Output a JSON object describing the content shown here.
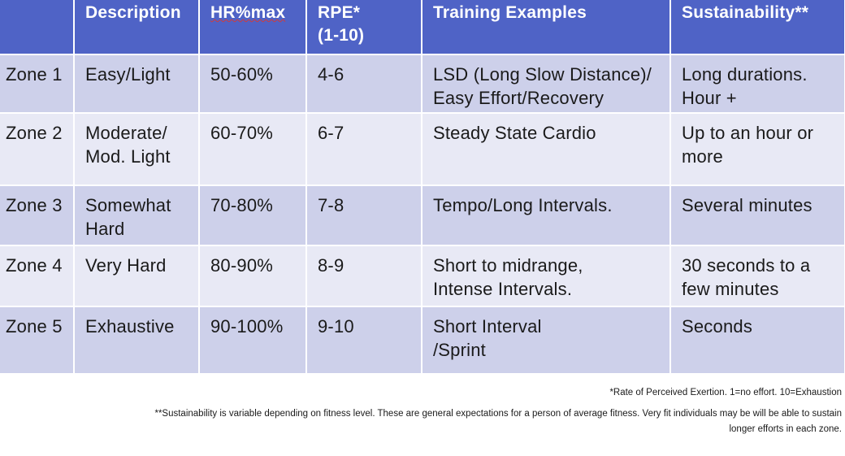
{
  "table": {
    "headers": [
      "",
      "Description",
      "HR%max",
      "RPE*\n(1-10)",
      "Training Examples",
      "Sustainability**"
    ],
    "rows": [
      {
        "zone": "Zone 1",
        "description": "Easy/Light",
        "hr": "50-60%",
        "rpe": "4-6",
        "examples": "LSD (Long Slow Distance)/\nEasy Effort/Recovery",
        "sustainability": "Long durations.\nHour +"
      },
      {
        "zone": "Zone 2",
        "description": "Moderate/\nMod. Light",
        "hr": "60-70%",
        "rpe": "6-7",
        "examples": "Steady State Cardio",
        "sustainability": "Up to an hour or\nmore"
      },
      {
        "zone": "Zone 3",
        "description": "Somewhat\nHard",
        "hr": "70-80%",
        "rpe": "7-8",
        "examples": "Tempo/Long Intervals.",
        "sustainability": "Several minutes"
      },
      {
        "zone": "Zone 4",
        "description": "Very Hard",
        "hr": "80-90%",
        "rpe": "8-9",
        "examples": "Short to midrange,\nIntense Intervals.",
        "sustainability": "30 seconds to a\nfew minutes"
      },
      {
        "zone": "Zone 5",
        "description": "Exhaustive",
        "hr": "90-100%",
        "rpe": "9-10",
        "examples": "Short Interval\n/Sprint",
        "sustainability": "Seconds"
      }
    ]
  },
  "footnotes": {
    "rpe": "*Rate of Perceived Exertion.  1=no effort. 10=Exhaustion",
    "sustainability_line1": "**Sustainability is variable depending on fitness level. These are general expectations for a person of average fitness.  Very fit individuals may be will be able to sustain",
    "sustainability_line2": "longer efforts in each zone."
  },
  "colors": {
    "header_bg": "#4f63c6",
    "row_odd_bg": "#cdd0ea",
    "row_even_bg": "#e8e9f5"
  }
}
